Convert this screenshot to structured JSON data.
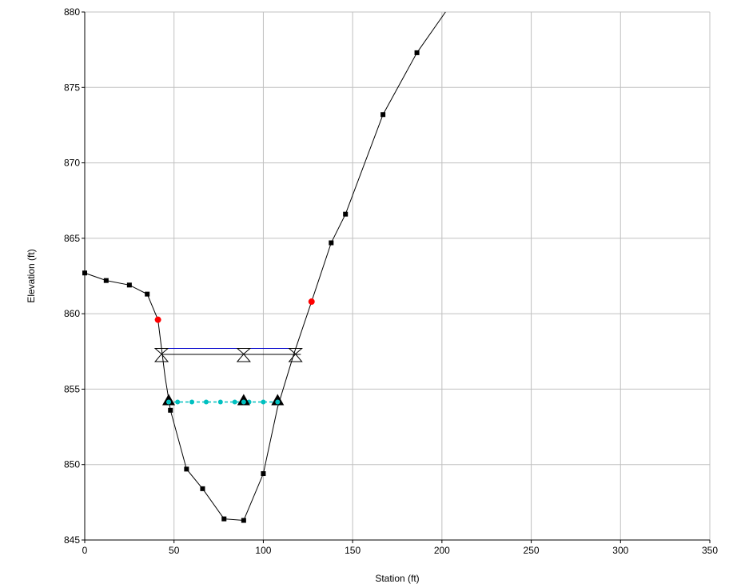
{
  "chart_data": {
    "type": "line",
    "title": "",
    "xlabel": "Station (ft)",
    "ylabel": "Elevation (ft)",
    "xlim": [
      0,
      350
    ],
    "ylim": [
      845,
      880
    ],
    "xticks": [
      0,
      50,
      100,
      150,
      200,
      250,
      300,
      350
    ],
    "yticks": [
      845,
      850,
      855,
      860,
      865,
      870,
      875,
      880
    ],
    "grid": true,
    "ground": {
      "x": [
        0,
        12,
        25,
        35,
        41,
        45,
        48,
        57,
        66,
        78,
        89,
        100,
        108,
        117,
        127,
        138,
        146,
        167,
        186,
        202
      ],
      "y": [
        862.7,
        862.2,
        861.9,
        861.3,
        859.6,
        855.8,
        853.6,
        849.7,
        848.4,
        846.4,
        846.3,
        849.4,
        853.8,
        857.3,
        860.8,
        864.7,
        866.6,
        873.2,
        877.3,
        880
      ]
    },
    "square_markers_x": [
      0,
      12,
      25,
      35,
      48,
      57,
      66,
      78,
      89,
      100,
      138,
      146,
      167,
      186
    ],
    "bank_stations": [
      {
        "x": 41,
        "y": 859.6
      },
      {
        "x": 127,
        "y": 860.8
      }
    ],
    "ws_upper": {
      "x": [
        43,
        121
      ],
      "y": 857.7,
      "markers_x": [
        43,
        89,
        118
      ]
    },
    "ws_lower": {
      "x": [
        43,
        121
      ],
      "y": 857.3
    },
    "critical": {
      "x": [
        47,
        108
      ],
      "y": 854.15,
      "dots_x": [
        52,
        60,
        68,
        76,
        84,
        92,
        100
      ],
      "triangles": [
        {
          "x": 47,
          "y": 854.2
        },
        {
          "x": 89,
          "y": 854.2
        },
        {
          "x": 108,
          "y": 854.2
        }
      ]
    },
    "colors": {
      "ground": "#000000",
      "bank": "#ff0000",
      "ws_upper": "#0000cc",
      "ws_lower": "#000000",
      "critical": "#00c0c0",
      "grid": "#c0c0c0"
    }
  }
}
